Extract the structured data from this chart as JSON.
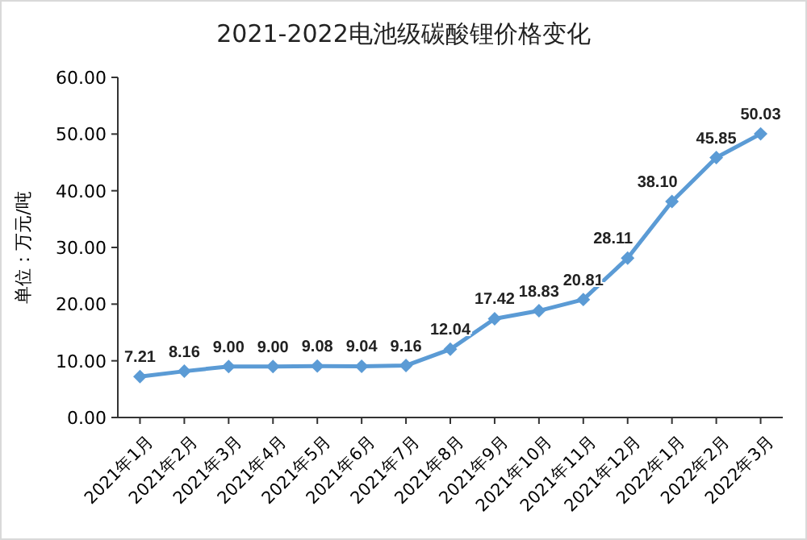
{
  "chart_data": {
    "type": "line",
    "title": "2021-2022电池级碳酸锂价格变化",
    "ylabel": "单位：万元/吨",
    "categories": [
      "2021年1月",
      "2021年2月",
      "2021年3月",
      "2021年4月",
      "2021年5月",
      "2021年6月",
      "2021年7月",
      "2021年8月",
      "2021年9月",
      "2021年10月",
      "2021年11月",
      "2021年12月",
      "2022年1月",
      "2022年2月",
      "2022年3月"
    ],
    "series": [
      {
        "color": "#5b9bd5",
        "values": [
          7.21,
          8.16,
          9.0,
          9.0,
          9.08,
          9.04,
          9.16,
          12.04,
          17.42,
          18.83,
          20.81,
          28.11,
          38.1,
          45.85,
          50.03
        ],
        "value_labels": [
          "7.21",
          "8.16",
          "9.00",
          "9.00",
          "9.08",
          "9.04",
          "9.16",
          "12.04",
          "17.42",
          "18.83",
          "20.81",
          "28.11",
          "38.10",
          "45.85",
          "50.03"
        ]
      }
    ],
    "ylim": [
      0,
      60
    ],
    "yticks": [
      {
        "value": 0,
        "label": "0.00"
      },
      {
        "value": 10,
        "label": "10.00"
      },
      {
        "value": 20,
        "label": "20.00"
      },
      {
        "value": 30,
        "label": "30.00"
      },
      {
        "value": 40,
        "label": "40.00"
      },
      {
        "value": 50,
        "label": "50.00"
      },
      {
        "value": 60,
        "label": "60.00"
      }
    ],
    "marker": "diamond",
    "line_style": "solid",
    "grid": false
  }
}
